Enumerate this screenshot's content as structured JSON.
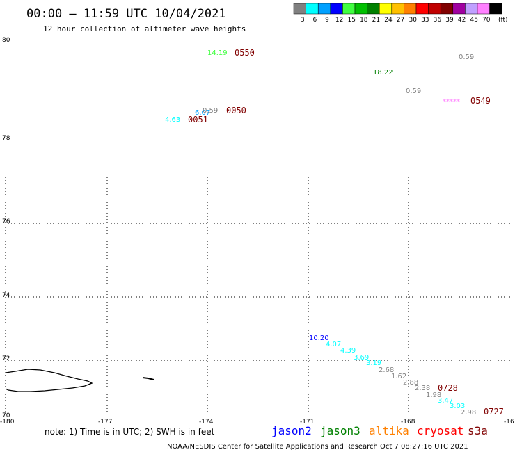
{
  "header": {
    "title": "00:00 — 11:59 UTC 10/04/2021",
    "subtitle": "12 hour collection of altimeter wave heights"
  },
  "legend": {
    "swatches": [
      {
        "color": "#808080",
        "label": "3"
      },
      {
        "color": "#00ffff",
        "label": "6"
      },
      {
        "color": "#00a0ff",
        "label": "9"
      },
      {
        "color": "#0000ff",
        "label": "12"
      },
      {
        "color": "#40ff40",
        "label": "15"
      },
      {
        "color": "#00c000",
        "label": "18"
      },
      {
        "color": "#008000",
        "label": "21"
      },
      {
        "color": "#ffff00",
        "label": "24"
      },
      {
        "color": "#ffc000",
        "label": "27"
      },
      {
        "color": "#ff8000",
        "label": "30"
      },
      {
        "color": "#ff0000",
        "label": "33"
      },
      {
        "color": "#c00000",
        "label": "36"
      },
      {
        "color": "#800000",
        "label": "39"
      },
      {
        "color": "#a000a0",
        "label": "42"
      },
      {
        "color": "#c0a0ff",
        "label": "45"
      },
      {
        "color": "#ff80ff",
        "label": "70"
      },
      {
        "color": "#000000",
        "label": ""
      }
    ],
    "unit": "(ft)"
  },
  "axes": {
    "lat_ticks": [
      "80",
      "78",
      "76",
      "74",
      "72",
      "70"
    ],
    "lon_ticks": [
      "-180",
      "-177",
      "-174",
      "-171",
      "-168",
      "-16"
    ]
  },
  "observations": [
    {
      "text": "14.19",
      "color": "#40ff40"
    },
    {
      "text": "18.22",
      "color": "#008000"
    },
    {
      "text": "0.59",
      "color": "#808080"
    },
    {
      "text": "0.59",
      "color": "#808080"
    },
    {
      "text": "*****",
      "color": "#ff80ff"
    },
    {
      "text": "6.07",
      "color": "#00a0ff"
    },
    {
      "text": "0.59",
      "color": "#808080"
    },
    {
      "text": "4.63",
      "color": "#00ffff"
    },
    {
      "text": "10.20",
      "color": "#0000ff"
    },
    {
      "text": "4.07",
      "color": "#00ffff"
    },
    {
      "text": "4.39",
      "color": "#00ffff"
    },
    {
      "text": "3.69",
      "color": "#00ffff"
    },
    {
      "text": "3.19",
      "color": "#00ffff"
    },
    {
      "text": "2.68",
      "color": "#808080"
    },
    {
      "text": "1.62",
      "color": "#808080"
    },
    {
      "text": "2.88",
      "color": "#808080"
    },
    {
      "text": "2.38",
      "color": "#808080"
    },
    {
      "text": "1.98",
      "color": "#808080"
    },
    {
      "text": "3.47",
      "color": "#00ffff"
    },
    {
      "text": "3.03",
      "color": "#00ffff"
    },
    {
      "text": "2.98",
      "color": "#808080"
    }
  ],
  "time_labels": [
    "0550",
    "0549",
    "0050",
    "0051",
    "0728",
    "0727"
  ],
  "footer": {
    "note": "note: 1) Time is in UTC; 2) SWH is in feet",
    "satellites": [
      {
        "name": "jason2",
        "color": "#0000ff"
      },
      {
        "name": "jason3",
        "color": "#008000"
      },
      {
        "name": "altika",
        "color": "#ff8000"
      },
      {
        "name": "cryosat",
        "color": "#ff0000"
      },
      {
        "name": "s3a",
        "color": "#800000"
      }
    ],
    "credit": "NOAA/NESDIS Center for Satellite Applications and Research   Oct  7 08:27:16 UTC 2021"
  }
}
